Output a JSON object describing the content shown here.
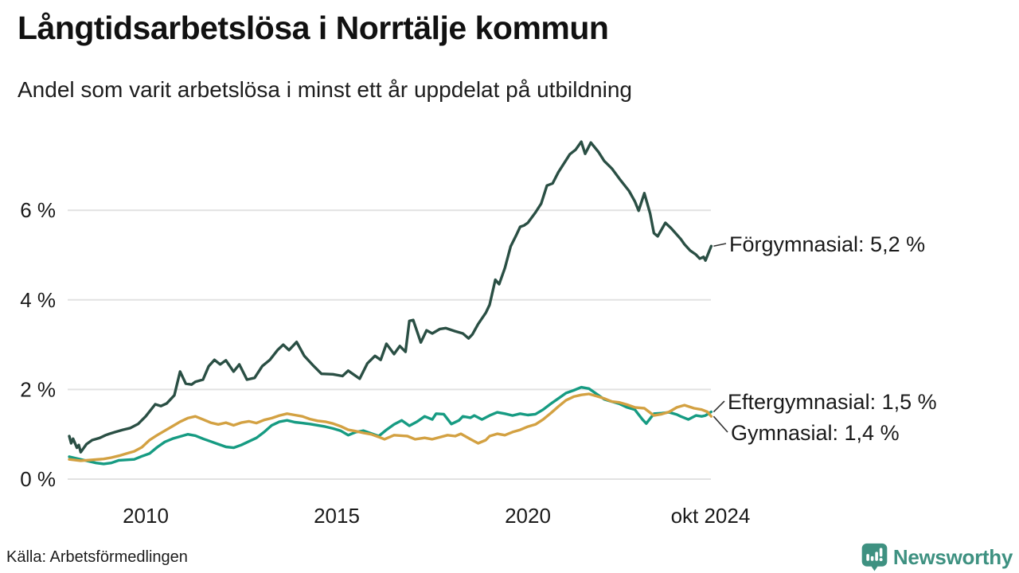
{
  "header": {
    "title": "Långtidsarbetslösa i Norrtälje kommun",
    "subtitle": "Andel som varit arbetslösa i minst ett år uppdelat på utbildning"
  },
  "footer": {
    "source": "Källa: Arbetsförmedlingen",
    "brand": "Newsworthy"
  },
  "colors": {
    "forgymnasial": "#2a4f44",
    "eftergymnasial": "#169b82",
    "gymnasial": "#d3a142",
    "grid": "#e2e2e2",
    "text": "#1a1a1a",
    "connector": "#333333",
    "logo_teal": "#3e9181"
  },
  "chart_data": {
    "type": "line",
    "title": "Långtidsarbetslösa i Norrtälje kommun",
    "subtitle": "Andel som varit arbetslösa i minst ett år uppdelat på utbildning",
    "xlabel": "",
    "ylabel": "",
    "x_range": [
      2008.0,
      2024.83
    ],
    "ylim": [
      0,
      7.8
    ],
    "grid": "horizontal",
    "legend_position": "right-annotations",
    "y_ticks": [
      {
        "value": 0,
        "label": "0 %"
      },
      {
        "value": 2,
        "label": "2 %"
      },
      {
        "value": 4,
        "label": "4 %"
      },
      {
        "value": 6,
        "label": "6 %"
      }
    ],
    "x_ticks": [
      {
        "value": 2010,
        "label": "2010"
      },
      {
        "value": 2015,
        "label": "2015"
      },
      {
        "value": 2020,
        "label": "2020"
      },
      {
        "value": 2024.78,
        "label": "okt 2024"
      }
    ],
    "series": [
      {
        "name": "Förgymnasial",
        "end_label": "Förgymnasial: 5,2 %",
        "end_value": 5.2,
        "color": "#2a4f44",
        "x": [
          2008.0,
          2008.05,
          2008.1,
          2008.2,
          2008.25,
          2008.3,
          2008.45,
          2008.6,
          2008.8,
          2008.95,
          2009.05,
          2009.2,
          2009.4,
          2009.6,
          2009.8,
          2010.0,
          2010.25,
          2010.4,
          2010.55,
          2010.75,
          2010.9,
          2011.05,
          2011.2,
          2011.3,
          2011.5,
          2011.65,
          2011.8,
          2011.95,
          2012.1,
          2012.3,
          2012.45,
          2012.65,
          2012.85,
          2013.05,
          2013.25,
          2013.45,
          2013.6,
          2013.75,
          2013.95,
          2014.15,
          2014.4,
          2014.6,
          2014.9,
          2015.15,
          2015.3,
          2015.6,
          2015.8,
          2016.0,
          2016.15,
          2016.3,
          2016.5,
          2016.65,
          2016.8,
          2016.9,
          2017.0,
          2017.2,
          2017.35,
          2017.5,
          2017.7,
          2017.85,
          2018.1,
          2018.3,
          2018.45,
          2018.55,
          2018.7,
          2018.9,
          2019.0,
          2019.15,
          2019.25,
          2019.4,
          2019.55,
          2019.7,
          2019.8,
          2019.9,
          2020.0,
          2020.2,
          2020.35,
          2020.5,
          2020.65,
          2020.8,
          2020.95,
          2021.1,
          2021.25,
          2021.4,
          2021.5,
          2021.65,
          2021.85,
          2022.0,
          2022.2,
          2022.4,
          2022.65,
          2022.8,
          2022.9,
          2023.05,
          2023.2,
          2023.3,
          2023.4,
          2023.6,
          2023.75,
          2024.0,
          2024.1,
          2024.25,
          2024.4,
          2024.5,
          2024.6,
          2024.65,
          2024.8
        ],
        "values": [
          0.96,
          0.8,
          0.9,
          0.7,
          0.76,
          0.6,
          0.78,
          0.87,
          0.92,
          0.98,
          1.01,
          1.05,
          1.1,
          1.14,
          1.23,
          1.4,
          1.67,
          1.63,
          1.69,
          1.87,
          2.4,
          2.13,
          2.11,
          2.17,
          2.22,
          2.52,
          2.66,
          2.56,
          2.65,
          2.4,
          2.56,
          2.22,
          2.26,
          2.52,
          2.66,
          2.88,
          3.0,
          2.88,
          3.06,
          2.75,
          2.52,
          2.35,
          2.34,
          2.3,
          2.42,
          2.24,
          2.58,
          2.75,
          2.66,
          3.02,
          2.79,
          2.97,
          2.84,
          3.53,
          3.55,
          3.05,
          3.32,
          3.25,
          3.35,
          3.37,
          3.3,
          3.25,
          3.14,
          3.23,
          3.46,
          3.71,
          3.89,
          4.45,
          4.35,
          4.71,
          5.19,
          5.45,
          5.63,
          5.66,
          5.72,
          5.95,
          6.15,
          6.55,
          6.6,
          6.85,
          7.05,
          7.25,
          7.35,
          7.53,
          7.26,
          7.51,
          7.3,
          7.1,
          6.93,
          6.7,
          6.43,
          6.2,
          5.99,
          6.38,
          5.93,
          5.49,
          5.42,
          5.72,
          5.6,
          5.36,
          5.24,
          5.1,
          5.01,
          4.92,
          4.96,
          4.88,
          5.2
        ]
      },
      {
        "name": "Eftergymnasial",
        "end_label": "Eftergymnasial: 1,5 %",
        "end_value": 1.5,
        "color": "#169b82",
        "x": [
          2008.0,
          2008.2,
          2008.5,
          2008.7,
          2008.9,
          2009.1,
          2009.3,
          2009.5,
          2009.7,
          2009.9,
          2010.1,
          2010.3,
          2010.5,
          2010.7,
          2010.9,
          2011.1,
          2011.3,
          2011.5,
          2011.7,
          2011.9,
          2012.1,
          2012.3,
          2012.5,
          2012.7,
          2012.9,
          2013.1,
          2013.3,
          2013.5,
          2013.7,
          2013.9,
          2014.1,
          2014.3,
          2014.5,
          2014.7,
          2014.9,
          2015.1,
          2015.3,
          2015.5,
          2015.7,
          2015.9,
          2016.1,
          2016.3,
          2016.5,
          2016.7,
          2016.9,
          2017.1,
          2017.3,
          2017.5,
          2017.6,
          2017.8,
          2018.0,
          2018.2,
          2018.3,
          2018.5,
          2018.6,
          2018.8,
          2019.0,
          2019.2,
          2019.4,
          2019.6,
          2019.8,
          2020.0,
          2020.2,
          2020.4,
          2020.6,
          2020.8,
          2021.0,
          2021.2,
          2021.4,
          2021.6,
          2021.8,
          2022.0,
          2022.2,
          2022.4,
          2022.6,
          2022.8,
          2023.0,
          2023.1,
          2023.3,
          2023.5,
          2023.7,
          2023.9,
          2024.0,
          2024.2,
          2024.4,
          2024.55,
          2024.65,
          2024.8
        ],
        "values": [
          0.5,
          0.46,
          0.4,
          0.36,
          0.34,
          0.36,
          0.42,
          0.43,
          0.44,
          0.51,
          0.57,
          0.71,
          0.83,
          0.9,
          0.95,
          1.0,
          0.97,
          0.9,
          0.84,
          0.78,
          0.72,
          0.7,
          0.76,
          0.84,
          0.92,
          1.05,
          1.2,
          1.28,
          1.31,
          1.27,
          1.25,
          1.23,
          1.2,
          1.17,
          1.13,
          1.08,
          0.98,
          1.05,
          1.08,
          1.02,
          0.96,
          1.1,
          1.22,
          1.31,
          1.19,
          1.28,
          1.4,
          1.33,
          1.46,
          1.45,
          1.23,
          1.31,
          1.4,
          1.37,
          1.42,
          1.33,
          1.42,
          1.49,
          1.46,
          1.42,
          1.46,
          1.43,
          1.45,
          1.55,
          1.68,
          1.8,
          1.92,
          1.98,
          2.05,
          2.02,
          1.9,
          1.78,
          1.73,
          1.68,
          1.6,
          1.55,
          1.33,
          1.24,
          1.46,
          1.47,
          1.49,
          1.44,
          1.4,
          1.33,
          1.42,
          1.4,
          1.42,
          1.5
        ]
      },
      {
        "name": "Gymnasial",
        "end_label": "Gymnasial: 1,4 %",
        "end_value": 1.4,
        "color": "#d3a142",
        "x": [
          2008.0,
          2008.3,
          2008.6,
          2008.9,
          2009.1,
          2009.3,
          2009.5,
          2009.7,
          2009.9,
          2010.1,
          2010.3,
          2010.5,
          2010.7,
          2010.9,
          2011.1,
          2011.3,
          2011.5,
          2011.7,
          2011.9,
          2012.1,
          2012.3,
          2012.5,
          2012.7,
          2012.9,
          2013.1,
          2013.3,
          2013.5,
          2013.7,
          2013.9,
          2014.1,
          2014.3,
          2014.5,
          2014.7,
          2014.9,
          2015.1,
          2015.3,
          2015.5,
          2015.7,
          2015.9,
          2016.1,
          2016.25,
          2016.5,
          2016.85,
          2017.05,
          2017.3,
          2017.5,
          2017.9,
          2018.1,
          2018.25,
          2018.5,
          2018.7,
          2018.9,
          2019.0,
          2019.2,
          2019.4,
          2019.6,
          2019.8,
          2020.0,
          2020.2,
          2020.4,
          2020.6,
          2020.8,
          2021.0,
          2021.2,
          2021.4,
          2021.6,
          2021.8,
          2022.0,
          2022.2,
          2022.4,
          2022.6,
          2022.8,
          2023.05,
          2023.3,
          2023.5,
          2023.7,
          2023.9,
          2024.1,
          2024.35,
          2024.55,
          2024.7,
          2024.8
        ],
        "values": [
          0.44,
          0.41,
          0.43,
          0.45,
          0.48,
          0.52,
          0.57,
          0.62,
          0.71,
          0.87,
          0.98,
          1.08,
          1.18,
          1.28,
          1.36,
          1.4,
          1.33,
          1.26,
          1.22,
          1.26,
          1.2,
          1.26,
          1.29,
          1.25,
          1.32,
          1.36,
          1.42,
          1.46,
          1.43,
          1.4,
          1.34,
          1.3,
          1.28,
          1.24,
          1.18,
          1.1,
          1.07,
          1.03,
          1.0,
          0.94,
          0.89,
          0.98,
          0.96,
          0.89,
          0.92,
          0.89,
          0.98,
          0.96,
          1.01,
          0.89,
          0.8,
          0.87,
          0.96,
          1.01,
          0.98,
          1.05,
          1.1,
          1.17,
          1.22,
          1.33,
          1.47,
          1.62,
          1.76,
          1.84,
          1.88,
          1.9,
          1.85,
          1.8,
          1.73,
          1.71,
          1.66,
          1.6,
          1.58,
          1.42,
          1.45,
          1.5,
          1.6,
          1.65,
          1.58,
          1.55,
          1.5,
          1.4
        ]
      }
    ]
  }
}
